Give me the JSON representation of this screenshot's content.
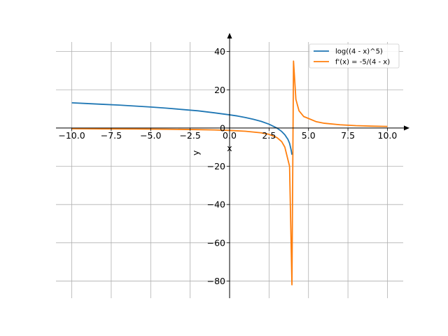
{
  "chart_data": {
    "type": "line",
    "title": "",
    "xlabel": "x",
    "ylabel": "y",
    "xlim": [
      -11.0,
      11.0
    ],
    "ylim": [
      -89.0,
      45.0
    ],
    "grid": true,
    "legend_position": "top-right",
    "x_ticks": [
      -10.0,
      -7.5,
      -5.0,
      -2.5,
      0.0,
      2.5,
      5.0,
      7.5,
      10.0
    ],
    "x_tick_labels": [
      "−10.0",
      "−7.5",
      "−5.0",
      "−2.5",
      "0.0",
      "2.5",
      "5.0",
      "7.5",
      "10.0"
    ],
    "y_ticks": [
      -80,
      -60,
      -40,
      -20,
      0,
      20,
      40
    ],
    "y_tick_labels": [
      "−80",
      "−60",
      "−40",
      "−20",
      "0",
      "20",
      "40"
    ],
    "series": [
      {
        "name": "log((4 - x)^5)",
        "color": "#1f77b4",
        "x": [
          -10.0,
          -9.0,
          -8.0,
          -7.0,
          -6.0,
          -5.0,
          -4.0,
          -3.0,
          -2.0,
          -1.0,
          0.0,
          0.5,
          1.0,
          1.5,
          2.0,
          2.5,
          3.0,
          3.3,
          3.5,
          3.7,
          3.8,
          3.9,
          3.95
        ],
        "values": [
          13.2,
          12.8,
          12.4,
          12.0,
          11.5,
          11.0,
          10.4,
          9.7,
          9.0,
          8.0,
          6.9,
          6.3,
          5.5,
          4.6,
          3.5,
          2.0,
          0.0,
          -1.8,
          -3.5,
          -6.0,
          -8.0,
          -11.5,
          -14.0
        ]
      },
      {
        "name": "f'(x) = -5/(4 - x)",
        "color": "#ff7f0e",
        "x": [
          -10.0,
          -8.0,
          -6.0,
          -4.0,
          -2.0,
          -1.0,
          0.0,
          1.0,
          2.0,
          2.5,
          3.0,
          3.3,
          3.5,
          3.7,
          3.8,
          3.95,
          4.05,
          4.2,
          4.4,
          4.7,
          5.0,
          5.5,
          6.0,
          7.0,
          8.0,
          9.0,
          10.0
        ],
        "values": [
          -0.36,
          -0.42,
          -0.5,
          -0.63,
          -0.83,
          -1.0,
          -1.25,
          -1.67,
          -2.5,
          -3.3,
          -5.0,
          -7.1,
          -10.0,
          -16.7,
          -20.0,
          -82.0,
          35.0,
          15.0,
          9.0,
          6.0,
          5.0,
          3.3,
          2.5,
          1.7,
          1.25,
          1.0,
          0.83
        ]
      }
    ]
  }
}
